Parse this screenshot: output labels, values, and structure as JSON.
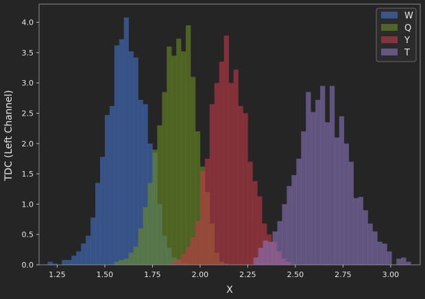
{
  "chart_data": {
    "type": "bar",
    "subtype": "histogram",
    "xlabel": "X",
    "ylabel": "TDC (Left Channel)",
    "xlim": [
      1.155,
      3.155
    ],
    "ylim": [
      0,
      4.3
    ],
    "xticks": [
      "1.25",
      "1.50",
      "1.75",
      "2.00",
      "2.25",
      "2.50",
      "2.75",
      "3.00"
    ],
    "yticks": [
      "0.0",
      "0.5",
      "1.0",
      "1.5",
      "2.0",
      "2.5",
      "3.0",
      "3.5",
      "4.0"
    ],
    "grid": false,
    "legend_position": "top-right",
    "bin_width": 0.025,
    "series": [
      {
        "name": "W",
        "color": "#4472c4",
        "bin_starts": [
          1.2,
          1.225,
          1.25,
          1.275,
          1.3,
          1.325,
          1.35,
          1.375,
          1.4,
          1.425,
          1.45,
          1.475,
          1.5,
          1.525,
          1.55,
          1.575,
          1.6,
          1.625,
          1.65,
          1.675,
          1.7,
          1.725,
          1.75,
          1.775,
          1.8,
          1.825,
          1.85,
          1.875,
          1.9
        ],
        "values": [
          0.05,
          0.02,
          0.0,
          0.08,
          0.08,
          0.15,
          0.22,
          0.35,
          0.48,
          0.78,
          1.35,
          1.78,
          2.47,
          2.62,
          3.62,
          3.72,
          4.08,
          3.52,
          3.42,
          2.72,
          2.65,
          2.0,
          1.85,
          1.0,
          0.48,
          0.28,
          0.12,
          0.08,
          0.02
        ]
      },
      {
        "name": "Q",
        "color": "#6b8e23",
        "bin_starts": [
          1.55,
          1.575,
          1.6,
          1.625,
          1.65,
          1.675,
          1.7,
          1.725,
          1.75,
          1.775,
          1.8,
          1.825,
          1.85,
          1.875,
          1.9,
          1.925,
          1.95,
          1.975,
          2.0,
          2.025,
          2.05,
          2.075,
          2.1,
          2.125
        ],
        "values": [
          0.05,
          0.08,
          0.1,
          0.2,
          0.3,
          0.6,
          0.95,
          1.35,
          1.9,
          2.3,
          2.85,
          3.6,
          3.45,
          3.73,
          3.52,
          3.95,
          3.1,
          2.2,
          1.62,
          1.2,
          0.68,
          0.2,
          0.05,
          0.02
        ]
      },
      {
        "name": "Y",
        "color": "#c23b47",
        "bin_starts": [
          1.85,
          1.875,
          1.9,
          1.925,
          1.95,
          1.975,
          2.0,
          2.025,
          2.05,
          2.075,
          2.1,
          2.125,
          2.15,
          2.175,
          2.2,
          2.225,
          2.25,
          2.275,
          2.3,
          2.325,
          2.35,
          2.375,
          2.4,
          2.425,
          2.45
        ],
        "values": [
          0.05,
          0.1,
          0.18,
          0.3,
          0.45,
          0.72,
          1.55,
          1.75,
          2.65,
          3.0,
          3.35,
          3.78,
          3.0,
          3.22,
          2.62,
          2.5,
          1.7,
          1.38,
          1.13,
          0.68,
          0.5,
          0.38,
          0.22,
          0.1,
          0.05
        ]
      },
      {
        "name": "T",
        "color": "#8a76be",
        "bin_starts": [
          2.28,
          2.305,
          2.33,
          2.355,
          2.38,
          2.405,
          2.43,
          2.455,
          2.48,
          2.505,
          2.53,
          2.555,
          2.58,
          2.605,
          2.63,
          2.655,
          2.68,
          2.705,
          2.73,
          2.755,
          2.78,
          2.805,
          2.83,
          2.855,
          2.88,
          2.905,
          2.93,
          2.955,
          2.98,
          3.005,
          3.03,
          3.055,
          3.08
        ],
        "values": [
          0.12,
          0.28,
          0.4,
          0.38,
          0.55,
          0.72,
          1.0,
          1.3,
          1.48,
          1.75,
          2.2,
          2.85,
          2.52,
          2.72,
          2.95,
          2.35,
          2.95,
          2.1,
          2.45,
          2.0,
          1.7,
          1.1,
          1.12,
          0.9,
          0.68,
          0.55,
          0.38,
          0.35,
          0.22,
          0.0,
          0.1,
          0.12,
          0.05
        ]
      }
    ]
  }
}
